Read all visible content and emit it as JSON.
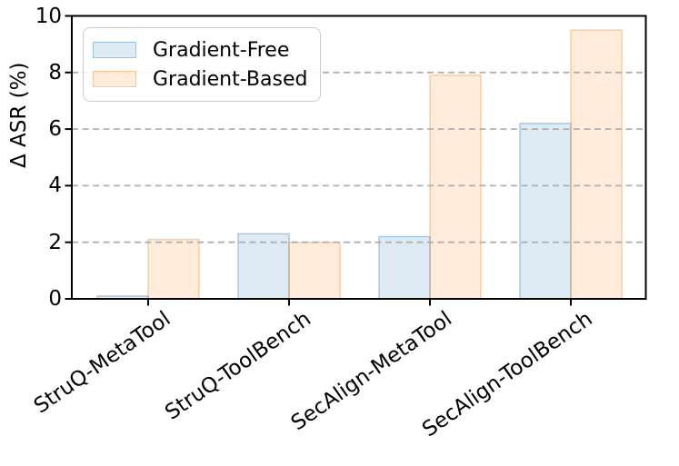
{
  "chart_data": {
    "type": "bar",
    "title": "",
    "xlabel": "",
    "ylabel": "Δ ASR (%)",
    "categories": [
      "StruQ-MetaTool",
      "StruQ-ToolBench",
      "SecAlign-MetaTool",
      "SecAlign-ToolBench"
    ],
    "series": [
      {
        "name": "Gradient-Free",
        "values": [
          0.1,
          2.3,
          2.2,
          6.2
        ],
        "fill_color": "rgba(31,119,180,0.15)",
        "edge_color": "rgba(31,119,180,0.35)"
      },
      {
        "name": "Gradient-Based",
        "values": [
          2.1,
          2.0,
          7.9,
          9.5
        ],
        "fill_color": "rgba(255,127,14,0.15)",
        "edge_color": "rgba(255,127,14,0.35)"
      }
    ],
    "ylim": [
      0,
      10
    ],
    "yticks": [
      0,
      2,
      4,
      6,
      8,
      10
    ],
    "grid": "horizontal dashed",
    "legend_position": "upper left",
    "colors": {
      "gridline": "#b0b0b0",
      "spine": "#000000",
      "background": "#ffffff"
    }
  }
}
